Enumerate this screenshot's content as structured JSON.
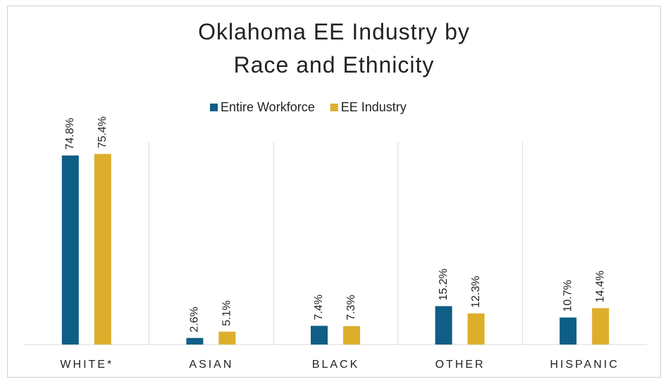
{
  "chart_data": {
    "type": "bar",
    "title": "Oklahoma EE Industry by Race and Ethnicity",
    "categories": [
      "WHITE*",
      "ASIAN",
      "BLACK",
      "OTHER",
      "HISPANIC"
    ],
    "series": [
      {
        "name": "Entire Workforce",
        "color": "#0f5e85",
        "values": [
          74.8,
          2.6,
          7.4,
          15.2,
          10.7
        ],
        "value_labels": [
          "74.8%",
          "2.6%",
          "7.4%",
          "15.2%",
          "10.7%"
        ]
      },
      {
        "name": "EE Industry",
        "color": "#dcae2c",
        "values": [
          75.4,
          5.1,
          7.3,
          12.3,
          14.4
        ],
        "value_labels": [
          "75.4%",
          "5.1%",
          "7.3%",
          "12.3%",
          "14.4%"
        ]
      }
    ],
    "ylim": [
      0,
      80
    ],
    "legend": "top"
  }
}
